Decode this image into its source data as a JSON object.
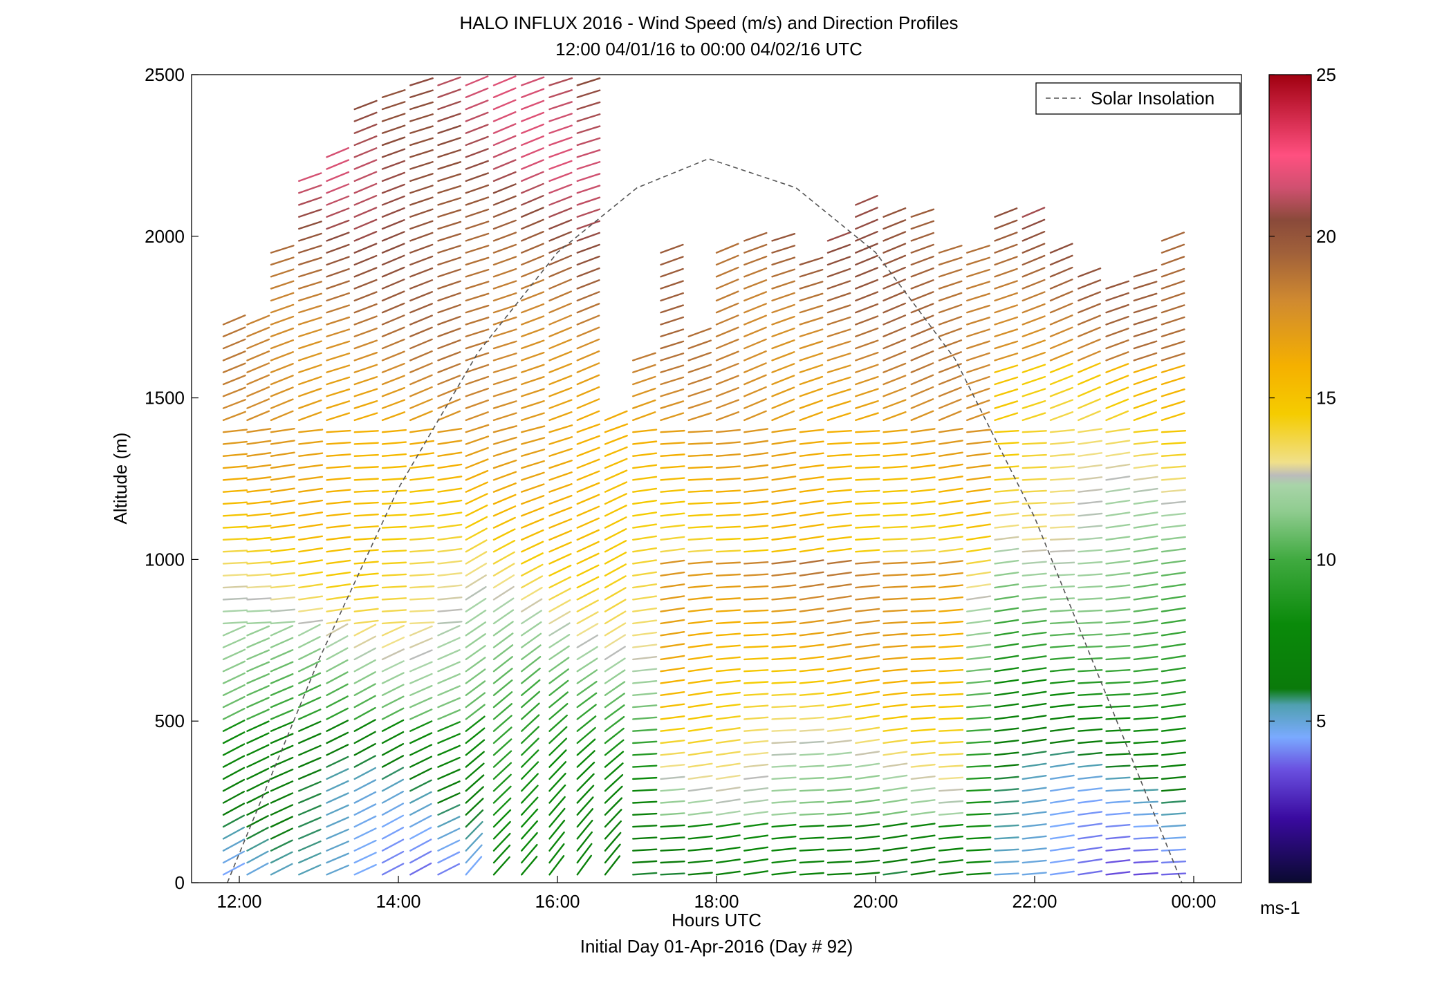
{
  "chart_data": {
    "type": "wind_barb_profile",
    "title": "HALO INFLUX 2016 - Wind Speed (m/s) and Direction Profiles",
    "subtitle": "12:00 04/01/16 to 00:00 04/02/16  UTC",
    "xlabel": "Hours UTC",
    "xlabel2": "Initial Day 01-Apr-2016 (Day # 92)",
    "ylabel": "Altitude (m)",
    "xlim": [
      11.4,
      24.6
    ],
    "ylim": [
      0,
      2500
    ],
    "x_ticks": [
      {
        "value": 12,
        "label": "12:00"
      },
      {
        "value": 14,
        "label": "14:00"
      },
      {
        "value": 16,
        "label": "16:00"
      },
      {
        "value": 18,
        "label": "18:00"
      },
      {
        "value": 20,
        "label": "20:00"
      },
      {
        "value": 22,
        "label": "22:00"
      },
      {
        "value": 24,
        "label": "00:00"
      }
    ],
    "y_ticks": [
      {
        "value": 0,
        "label": "0"
      },
      {
        "value": 500,
        "label": "500"
      },
      {
        "value": 1000,
        "label": "1000"
      },
      {
        "value": 1500,
        "label": "1500"
      },
      {
        "value": 2000,
        "label": "2000"
      },
      {
        "value": 2500,
        "label": "2500"
      }
    ],
    "legend": {
      "entries": [
        "Solar Insolation"
      ],
      "position": "top-right"
    },
    "solar_insolation": {
      "style": "dashed",
      "color": "#555555",
      "points": [
        [
          11.85,
          0
        ],
        [
          13.0,
          690
        ],
        [
          14.0,
          1220
        ],
        [
          15.0,
          1640
        ],
        [
          16.0,
          1950
        ],
        [
          17.0,
          2150
        ],
        [
          17.9,
          2240
        ],
        [
          19.0,
          2150
        ],
        [
          20.0,
          1950
        ],
        [
          21.0,
          1620
        ],
        [
          22.0,
          1130
        ],
        [
          23.0,
          520
        ],
        [
          23.85,
          0
        ]
      ]
    },
    "colorbar": {
      "min": 0,
      "max": 25,
      "unit_label": "ms-1",
      "ticks": [
        "5",
        "10",
        "15",
        "20",
        "25"
      ],
      "stops": [
        [
          0,
          "#0a0a30"
        ],
        [
          2,
          "#3a0aa0"
        ],
        [
          3.5,
          "#6a50e0"
        ],
        [
          4.5,
          "#7aaaff"
        ],
        [
          5.5,
          "#50a0b0"
        ],
        [
          6,
          "#0a7a0a"
        ],
        [
          8,
          "#0a8a0a"
        ],
        [
          10,
          "#40aa40"
        ],
        [
          11.5,
          "#90cc90"
        ],
        [
          12.3,
          "#a8d4a8"
        ],
        [
          12.6,
          "#bbbbbb"
        ],
        [
          13,
          "#f0e08a"
        ],
        [
          14.5,
          "#f5cc00"
        ],
        [
          16,
          "#f5b000"
        ],
        [
          18,
          "#d08a30"
        ],
        [
          19.5,
          "#a0603a"
        ],
        [
          20.5,
          "#8a4a3a"
        ],
        [
          21.5,
          "#d05070"
        ],
        [
          22.5,
          "#ff5080"
        ],
        [
          25,
          "#a00010"
        ]
      ]
    },
    "columns": [
      {
        "time": 11.8,
        "top": 1750
      },
      {
        "time": 12.1,
        "top": 1750
      },
      {
        "time": 12.4,
        "top": 1950
      },
      {
        "time": 12.75,
        "top": 2180
      },
      {
        "time": 13.1,
        "top": 2280
      },
      {
        "time": 13.45,
        "top": 2400
      },
      {
        "time": 13.8,
        "top": 2450
      },
      {
        "time": 14.15,
        "top": 2490
      },
      {
        "time": 14.5,
        "top": 2500
      },
      {
        "time": 14.85,
        "top": 2500
      },
      {
        "time": 15.2,
        "top": 2500
      },
      {
        "time": 15.55,
        "top": 2500
      },
      {
        "time": 15.9,
        "top": 2480
      },
      {
        "time": 16.25,
        "top": 2500
      },
      {
        "time": 16.6,
        "top": 1450
      },
      {
        "time": 16.95,
        "top": 1650
      },
      {
        "time": 17.3,
        "top": 1960
      },
      {
        "time": 17.65,
        "top": 1700
      },
      {
        "time": 18.0,
        "top": 1960
      },
      {
        "time": 18.35,
        "top": 2000
      },
      {
        "time": 18.7,
        "top": 2000
      },
      {
        "time": 19.05,
        "top": 1920
      },
      {
        "time": 19.4,
        "top": 2000
      },
      {
        "time": 19.75,
        "top": 2100
      },
      {
        "time": 20.1,
        "top": 2060
      },
      {
        "time": 20.45,
        "top": 2070
      },
      {
        "time": 20.8,
        "top": 1960
      },
      {
        "time": 21.15,
        "top": 1960
      },
      {
        "time": 21.5,
        "top": 2080
      },
      {
        "time": 21.85,
        "top": 2080
      },
      {
        "time": 22.2,
        "top": 1960
      },
      {
        "time": 22.55,
        "top": 1900
      },
      {
        "time": 22.9,
        "top": 1870
      },
      {
        "time": 23.25,
        "top": 1900
      },
      {
        "time": 23.6,
        "top": 2000
      }
    ],
    "profile_note_levels": [
      {
        "altitude": 0,
        "speed": 6.5
      },
      {
        "altitude": 300,
        "speed": 8
      },
      {
        "altitude": 700,
        "speed": 12
      },
      {
        "altitude": 1100,
        "speed": 15
      },
      {
        "altitude": 1600,
        "speed": 18
      },
      {
        "altitude": 2200,
        "speed": 21
      }
    ]
  }
}
